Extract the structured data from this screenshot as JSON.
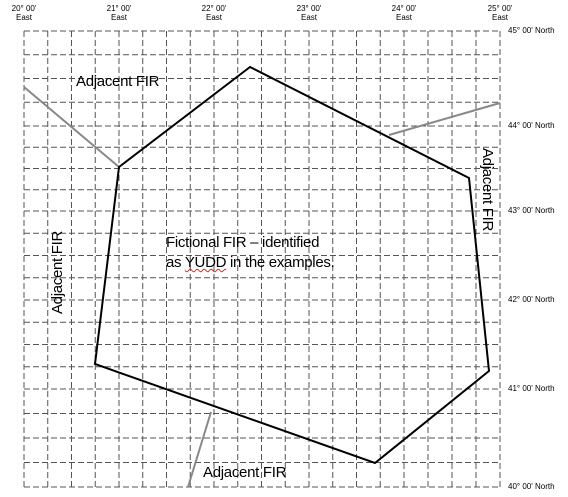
{
  "lon_labels": [
    {
      "deg": "20° 00'",
      "dir": "East"
    },
    {
      "deg": "21° 00'",
      "dir": "East"
    },
    {
      "deg": "22° 00'",
      "dir": "East"
    },
    {
      "deg": "23° 00'",
      "dir": "East"
    },
    {
      "deg": "24° 00'",
      "dir": "East"
    },
    {
      "deg": "25° 00'",
      "dir": "East"
    }
  ],
  "lat_labels": [
    "45° 00' North",
    "44° 00' North",
    "43° 00' North",
    "42° 00' North",
    "41° 00' North",
    "40° 00' North"
  ],
  "region_labels": {
    "top_left": "Adjacent FIR",
    "left": "Adjacent FIR",
    "right": "Adjacent FIR",
    "bottom": "Adjacent FIR"
  },
  "fir_label": {
    "line1": "Fictional FIR – identified",
    "line2_prefix": "as ",
    "line2_code": "YUDD",
    "line2_suffix": " in the examples."
  },
  "colors": {
    "grid": "#555555",
    "fir_boundary": "#000000",
    "adjacent_boundary": "#888888"
  }
}
